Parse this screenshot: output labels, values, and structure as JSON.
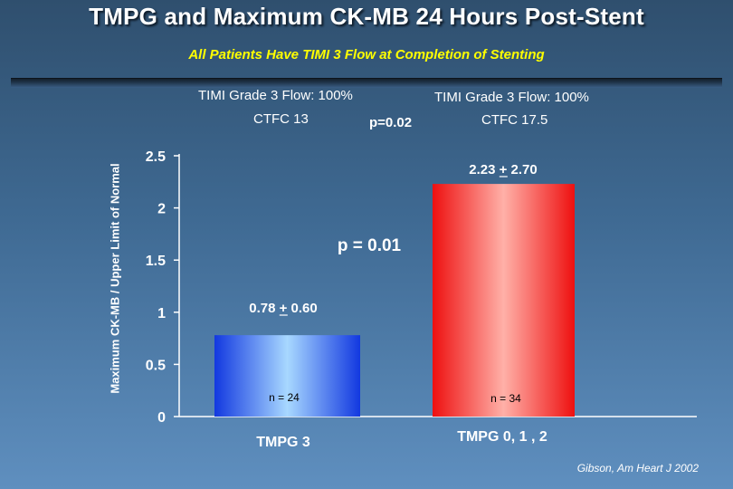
{
  "header": {
    "title": "TMPG and Maximum CK-MB 24 Hours Post-Stent",
    "subtitle": "All Patients Have TIMI 3 Flow at Completion of Stenting"
  },
  "annotations": {
    "left_flow": "TIMI Grade 3 Flow: 100%",
    "left_ctfc": "CTFC 13",
    "middle_p": "p=0.02",
    "right_flow": "TIMI Grade 3 Flow: 100%",
    "right_ctfc": "CTFC 17.5",
    "bar_p": "p = 0.01"
  },
  "source": "Gibson, Am Heart J 2002",
  "colors": {
    "bar1_mid": "#a8d8ff",
    "bar1_edge": "#1238e0",
    "bar2_mid": "#ffb0a8",
    "bar2_edge": "#ee1010",
    "subtitle": "#ffff00"
  },
  "chart_data": {
    "type": "bar",
    "ylabel": "Maximum CK-MB / Upper Limit of Normal",
    "ylim": [
      0,
      2.5
    ],
    "yticks": [
      "0",
      "0.5",
      "1",
      "1.5",
      "2",
      "2.5"
    ],
    "categories": [
      "TMPG 3",
      "TMPG  0, 1 , 2"
    ],
    "values": [
      0.78,
      2.23
    ],
    "value_labels": [
      "0.78 + 0.60",
      "2.23 + 2.70"
    ],
    "n_labels": [
      "n = 24",
      "n = 34"
    ]
  }
}
